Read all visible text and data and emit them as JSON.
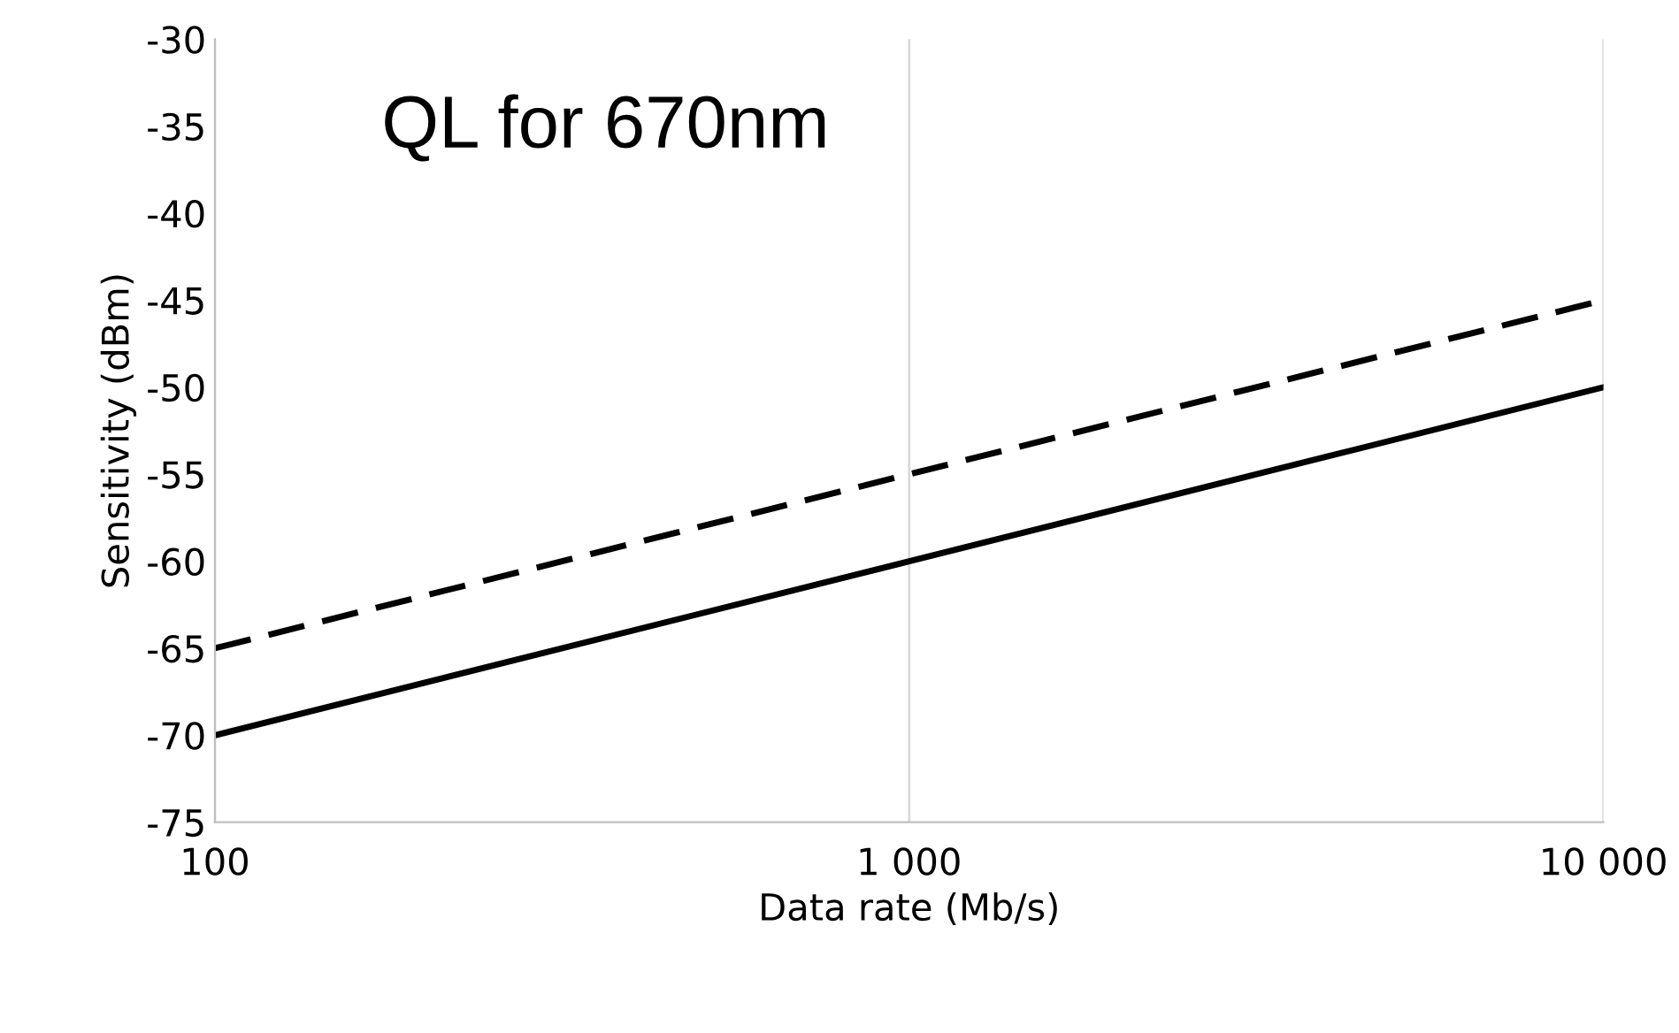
{
  "chart_data": {
    "type": "line",
    "title": "QL for 670nm",
    "xlabel": "Data rate (Mb/s)",
    "ylabel": "Sensitivity (dBm)",
    "log": "x",
    "xlim": [
      100,
      10000
    ],
    "xticks": [
      100,
      {
        "value": 1000,
        "label": "1 000"
      },
      {
        "value": 10000,
        "label": "10 000"
      }
    ],
    "ylim": [
      -75,
      -30
    ],
    "yticks": [
      -75,
      -70,
      -65,
      -60,
      -55,
      -50,
      -45,
      -40,
      -35,
      -30
    ],
    "grid": "x",
    "marker": "none",
    "series": [
      {
        "color": "#000000",
        "line_style": "dashed",
        "x": [
          100,
          1000,
          10000
        ],
        "values": [
          -65,
          -55,
          -45
        ]
      },
      {
        "color": "#000000",
        "line_style": "solid",
        "x": [
          100,
          1000,
          10000
        ],
        "values": [
          -70,
          -60,
          -50
        ]
      }
    ]
  }
}
